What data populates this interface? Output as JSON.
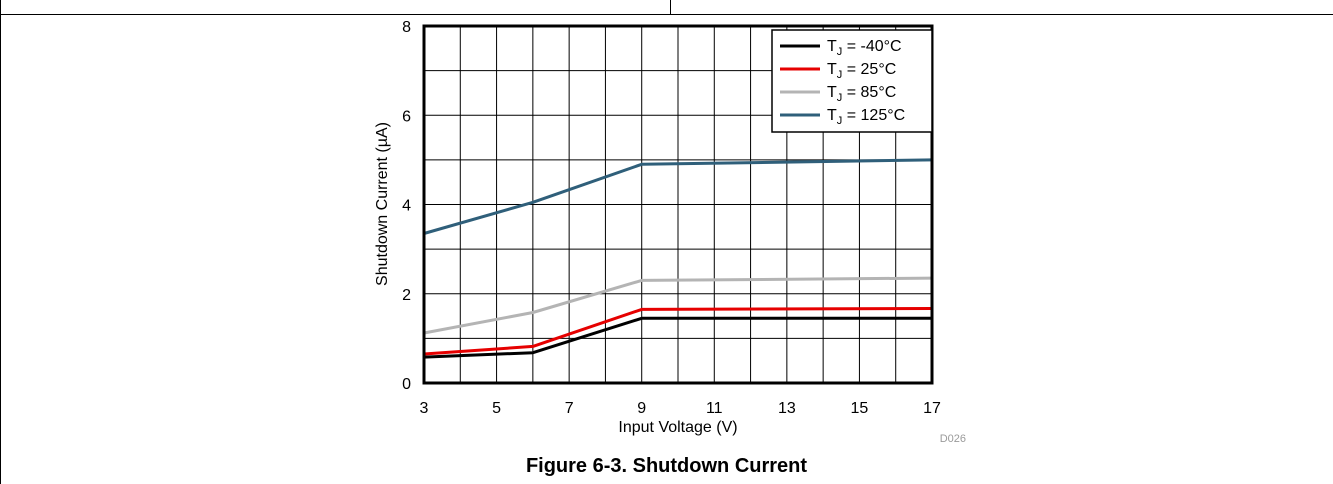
{
  "caption": "Figure 6-3. Shutdown Current",
  "chart_data": {
    "type": "line",
    "xlabel": "Input Voltage (V)",
    "ylabel": "Shutdown Current (µA)",
    "xlim": [
      3,
      17
    ],
    "ylim": [
      0,
      8
    ],
    "xticks": [
      3,
      5,
      7,
      9,
      11,
      13,
      15,
      17
    ],
    "yticks": [
      0,
      2,
      4,
      6,
      8
    ],
    "grid": true,
    "legend_position": "top-right",
    "figure_id": "D026",
    "series": [
      {
        "name": "T_J = -40°C",
        "label_prefix": "T",
        "label_sub": "J",
        "label_suffix": " = -40°C",
        "color": "#000000",
        "x": [
          3,
          6,
          9,
          17
        ],
        "y": [
          0.58,
          0.68,
          1.45,
          1.45
        ]
      },
      {
        "name": "T_J = 25°C",
        "label_prefix": "T",
        "label_sub": "J",
        "label_suffix": " =  25°C",
        "color": "#e60000",
        "x": [
          3,
          6,
          9,
          17
        ],
        "y": [
          0.65,
          0.82,
          1.65,
          1.67
        ]
      },
      {
        "name": "T_J = 85°C",
        "label_prefix": "T",
        "label_sub": "J",
        "label_suffix": " =  85°C",
        "color": "#b4b4b4",
        "x": [
          3,
          6,
          9,
          17
        ],
        "y": [
          1.12,
          1.58,
          2.3,
          2.35
        ]
      },
      {
        "name": "T_J = 125°C",
        "label_prefix": "T",
        "label_sub": "J",
        "label_suffix": " =  125°C",
        "color": "#2f5f7a",
        "x": [
          3,
          6,
          9,
          17
        ],
        "y": [
          3.35,
          4.05,
          4.9,
          5.0
        ]
      }
    ]
  }
}
